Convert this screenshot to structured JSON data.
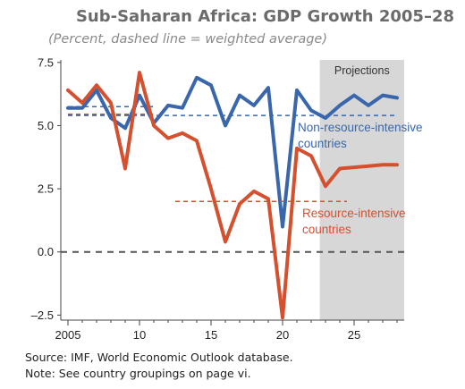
{
  "title": "Sub-Saharan Africa: GDP Growth 2005–28",
  "subtitle": "(Percent, dashed line = weighted average)",
  "source_note": "Source: IMF, World Economic Outlook database.",
  "pages_note": "Note: See country groupings on page vi.",
  "colors": {
    "non_resource": "#3a67ac",
    "resource": "#d4502e",
    "projection_band": "#d7d7d7",
    "zero_line": "#555555",
    "axis": "#444444"
  },
  "chart_data": {
    "type": "line",
    "x_ticks": [
      2005,
      2010,
      2015,
      2020,
      2025
    ],
    "x_tick_labels": [
      "2005",
      "10",
      "15",
      "20",
      "25"
    ],
    "xlim": [
      2004.5,
      2028.5
    ],
    "ylim": [
      -2.7,
      7.6
    ],
    "y_ticks": [
      -2.5,
      0.0,
      2.5,
      5.0,
      7.5
    ],
    "y_tick_labels": [
      "–2.5",
      "0.0",
      "2.5",
      "5.0",
      "7.5"
    ],
    "grid": false,
    "projection_label": "Projections",
    "projection_start": 2022.6,
    "projection_end": 2028.5,
    "zero_line": {
      "y": 0.0,
      "style": "dashed"
    },
    "series": [
      {
        "name": "Non-resource-intensive countries",
        "label_lines": [
          "Non-resource-intensive",
          "countries"
        ],
        "color": "#3a67ac",
        "x": [
          2005,
          2006,
          2007,
          2008,
          2009,
          2010,
          2011,
          2012,
          2013,
          2014,
          2015,
          2016,
          2017,
          2018,
          2019,
          2020,
          2021,
          2022,
          2023,
          2024,
          2025,
          2026,
          2027,
          2028
        ],
        "values": [
          5.7,
          5.7,
          6.4,
          5.3,
          4.9,
          6.2,
          5.1,
          5.8,
          5.7,
          6.9,
          6.6,
          5.0,
          6.2,
          5.8,
          6.5,
          1.0,
          6.4,
          5.6,
          5.3,
          5.8,
          6.2,
          5.8,
          6.2,
          6.1
        ],
        "average": {
          "value": 5.4,
          "x_range": [
            2005,
            2028
          ]
        }
      },
      {
        "name": "Resource-intensive countries",
        "label_lines": [
          "Resource-intensive",
          "countries"
        ],
        "color": "#d4502e",
        "x": [
          2005,
          2006,
          2007,
          2008,
          2009,
          2010,
          2011,
          2012,
          2013,
          2014,
          2015,
          2016,
          2017,
          2018,
          2019,
          2020,
          2021,
          2022,
          2023,
          2024,
          2025,
          2026,
          2027,
          2028
        ],
        "values": [
          6.4,
          5.9,
          6.6,
          5.9,
          3.3,
          7.1,
          5.0,
          4.5,
          4.7,
          4.4,
          2.5,
          0.4,
          1.9,
          2.4,
          2.1,
          -2.6,
          4.1,
          3.8,
          2.6,
          3.3,
          3.35,
          3.4,
          3.45,
          3.45
        ],
        "average": {
          "value": 2.0,
          "x_range": [
            2012.5,
            2024.5
          ]
        }
      }
    ],
    "early_averages": [
      {
        "series": "Non-resource-intensive countries",
        "value": 5.75,
        "x_range": [
          2005,
          2011
        ]
      },
      {
        "series": "Resource-intensive countries",
        "value": 5.45,
        "x_range": [
          2005,
          2011
        ]
      }
    ]
  }
}
